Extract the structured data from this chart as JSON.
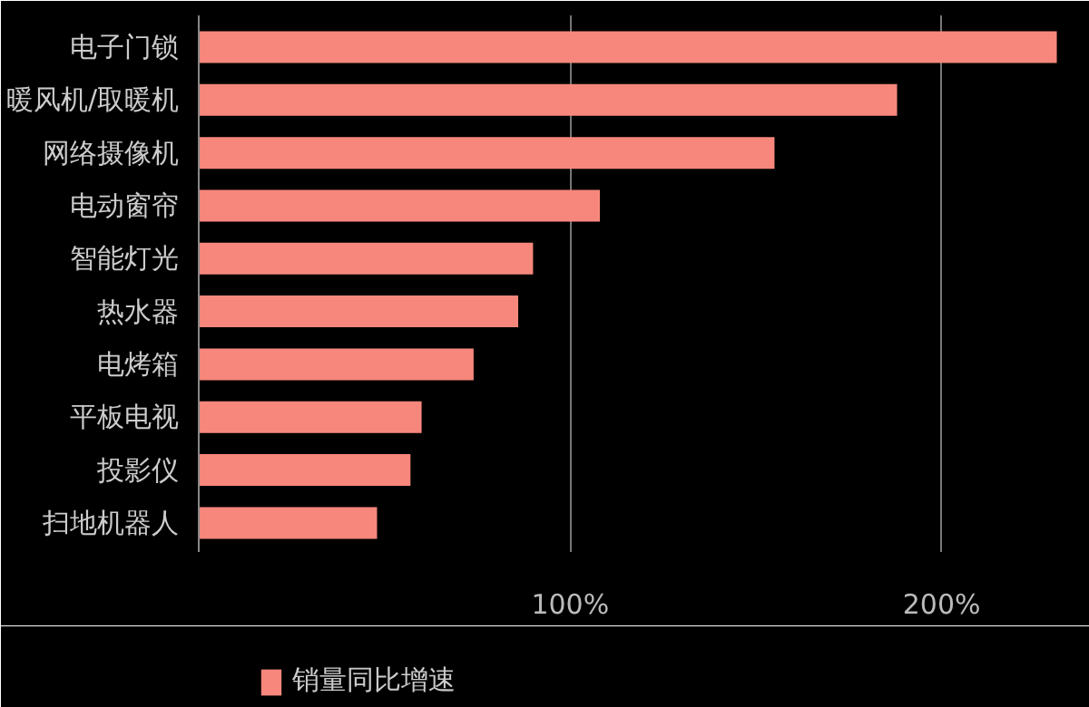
{
  "chart_data": {
    "type": "bar",
    "orientation": "horizontal",
    "categories": [
      "电子门锁",
      "暖风机/取暖机",
      "网络摄像机",
      "电动窗帘",
      "智能灯光",
      "热水器",
      "电烤箱",
      "平板电视",
      "投影仪",
      "扫地机器人"
    ],
    "series": [
      {
        "name": "销量同比增速",
        "color": "#f7877c",
        "values": [
          231,
          188,
          155,
          108,
          90,
          86,
          74,
          60,
          57,
          48
        ]
      }
    ],
    "xlim": [
      0,
      236
    ],
    "xticks": [
      {
        "value": 100,
        "label": "100%"
      },
      {
        "value": 200,
        "label": "200%"
      }
    ],
    "grid": "x",
    "legend": "bottom left"
  }
}
